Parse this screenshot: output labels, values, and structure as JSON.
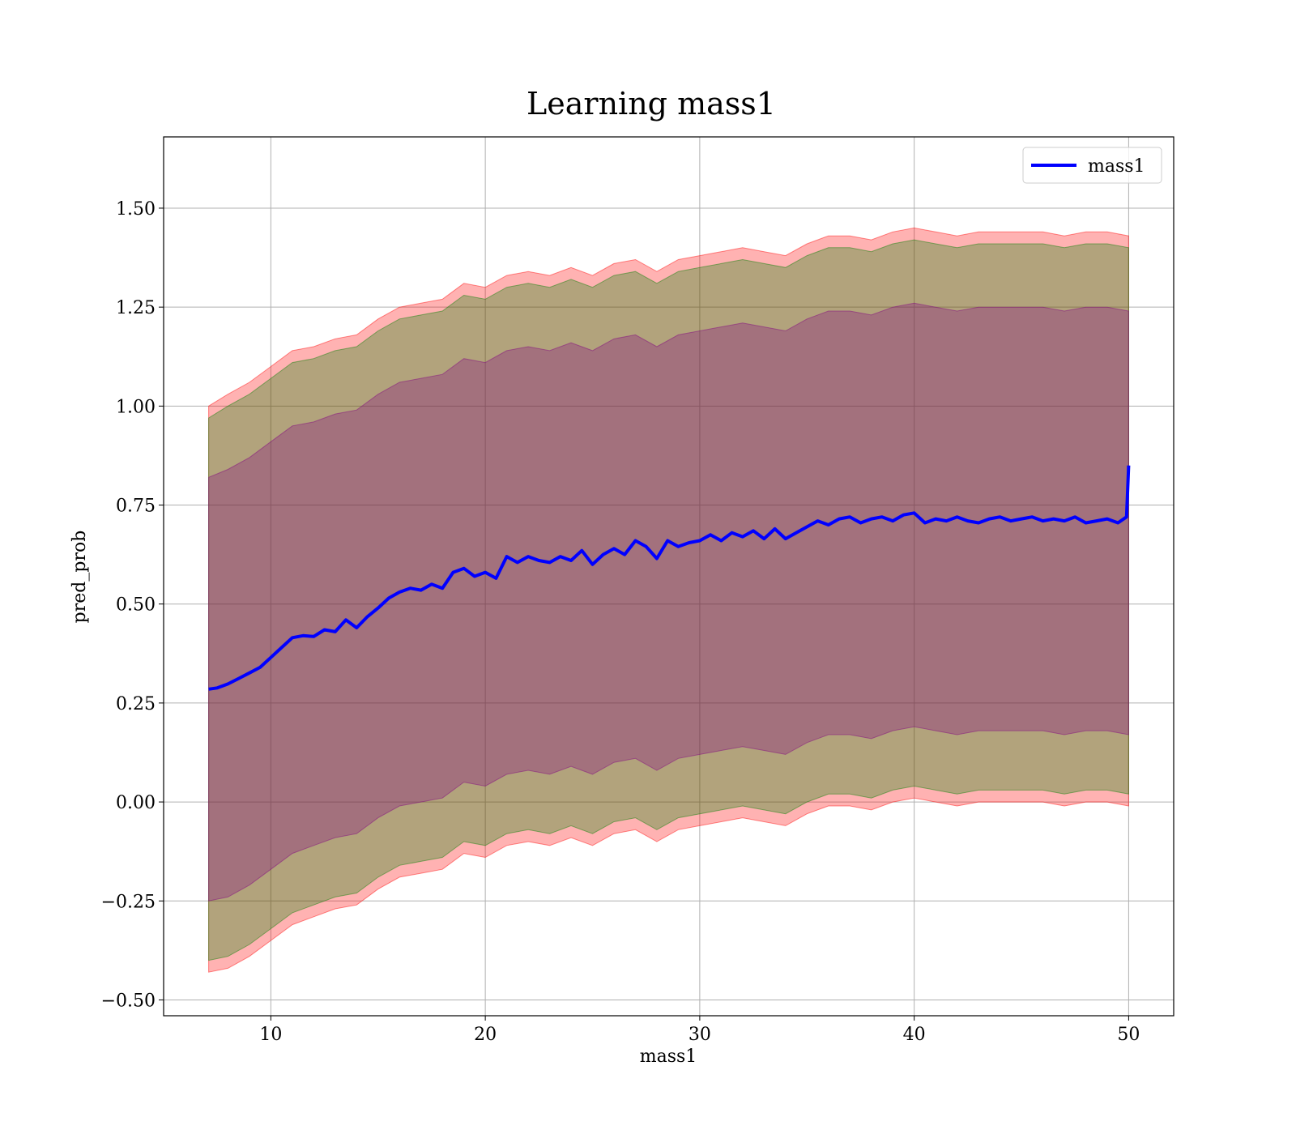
{
  "chart_data": {
    "type": "line",
    "title": "Learning mass1",
    "xlabel": "mass1",
    "ylabel": "pred_prob",
    "xlim": [
      5,
      52.1
    ],
    "ylim": [
      -0.54,
      1.68
    ],
    "xticks": [
      10,
      20,
      30,
      40,
      50
    ],
    "yticks": [
      -0.5,
      -0.25,
      0.0,
      0.25,
      0.5,
      0.75,
      1.0,
      1.25,
      1.5
    ],
    "ytick_labels": [
      "−0.50",
      "−0.25",
      "0.00",
      "0.25",
      "0.50",
      "0.75",
      "1.00",
      "1.25",
      "1.50"
    ],
    "grid": true,
    "legend_position": "top-right",
    "series": [
      {
        "name": "mass1",
        "color": "#0000ff",
        "x": [
          7.1,
          7.5,
          8,
          8.5,
          9,
          9.5,
          10,
          10.5,
          11,
          11.5,
          12,
          12.5,
          13,
          13.5,
          14,
          14.5,
          15,
          15.5,
          16,
          16.5,
          17,
          17.5,
          18,
          18.5,
          19,
          19.5,
          20,
          20.5,
          21,
          21.5,
          22,
          22.5,
          23,
          23.5,
          24,
          24.5,
          25,
          25.5,
          26,
          26.5,
          27,
          27.5,
          28,
          28.5,
          29,
          29.5,
          30,
          30.5,
          31,
          31.5,
          32,
          32.5,
          33,
          33.5,
          34,
          34.5,
          35,
          35.5,
          36,
          36.5,
          37,
          37.5,
          38,
          38.5,
          39,
          39.5,
          40,
          40.5,
          41,
          41.5,
          42,
          42.5,
          43,
          43.5,
          44,
          44.5,
          45,
          45.5,
          46,
          46.5,
          47,
          47.5,
          48,
          48.5,
          49,
          49.5,
          49.9,
          50
        ],
        "y": [
          0.285,
          0.288,
          0.298,
          0.312,
          0.326,
          0.34,
          0.365,
          0.39,
          0.415,
          0.42,
          0.418,
          0.435,
          0.43,
          0.46,
          0.44,
          0.468,
          0.49,
          0.515,
          0.53,
          0.54,
          0.535,
          0.55,
          0.54,
          0.58,
          0.59,
          0.57,
          0.58,
          0.565,
          0.62,
          0.605,
          0.62,
          0.61,
          0.605,
          0.62,
          0.61,
          0.635,
          0.6,
          0.625,
          0.64,
          0.625,
          0.66,
          0.645,
          0.615,
          0.66,
          0.645,
          0.655,
          0.66,
          0.675,
          0.66,
          0.68,
          0.67,
          0.685,
          0.665,
          0.69,
          0.665,
          0.68,
          0.695,
          0.71,
          0.7,
          0.715,
          0.72,
          0.705,
          0.715,
          0.72,
          0.71,
          0.725,
          0.73,
          0.705,
          0.715,
          0.71,
          0.72,
          0.71,
          0.705,
          0.715,
          0.72,
          0.71,
          0.715,
          0.72,
          0.71,
          0.715,
          0.71,
          0.72,
          0.705,
          0.71,
          0.715,
          0.705,
          0.72,
          0.85
        ]
      }
    ],
    "bands": [
      {
        "color": "#ff0000",
        "opacity": 0.3,
        "x": [
          7.1,
          8,
          9,
          10,
          11,
          12,
          13,
          14,
          15,
          16,
          17,
          18,
          19,
          20,
          21,
          22,
          23,
          24,
          25,
          26,
          27,
          28,
          29,
          30,
          31,
          32,
          33,
          34,
          35,
          36,
          37,
          38,
          39,
          40,
          41,
          42,
          43,
          44,
          45,
          46,
          47,
          48,
          49,
          50
        ],
        "upper": [
          1.0,
          1.03,
          1.06,
          1.1,
          1.14,
          1.15,
          1.17,
          1.18,
          1.22,
          1.25,
          1.26,
          1.27,
          1.31,
          1.3,
          1.33,
          1.34,
          1.33,
          1.35,
          1.33,
          1.36,
          1.37,
          1.34,
          1.37,
          1.38,
          1.39,
          1.4,
          1.39,
          1.38,
          1.41,
          1.43,
          1.43,
          1.42,
          1.44,
          1.45,
          1.44,
          1.43,
          1.44,
          1.44,
          1.44,
          1.44,
          1.43,
          1.44,
          1.44,
          1.43
        ],
        "lower": [
          -0.43,
          -0.42,
          -0.39,
          -0.35,
          -0.31,
          -0.29,
          -0.27,
          -0.26,
          -0.22,
          -0.19,
          -0.18,
          -0.17,
          -0.13,
          -0.14,
          -0.11,
          -0.1,
          -0.11,
          -0.09,
          -0.11,
          -0.08,
          -0.07,
          -0.1,
          -0.07,
          -0.06,
          -0.05,
          -0.04,
          -0.05,
          -0.06,
          -0.03,
          -0.01,
          -0.01,
          -0.02,
          0.0,
          0.01,
          0.0,
          -0.01,
          0.0,
          0.0,
          0.0,
          0.0,
          -0.01,
          0.0,
          0.0,
          -0.01
        ]
      },
      {
        "color": "#008000",
        "opacity": 0.3,
        "x": [
          7.1,
          8,
          9,
          10,
          11,
          12,
          13,
          14,
          15,
          16,
          17,
          18,
          19,
          20,
          21,
          22,
          23,
          24,
          25,
          26,
          27,
          28,
          29,
          30,
          31,
          32,
          33,
          34,
          35,
          36,
          37,
          38,
          39,
          40,
          41,
          42,
          43,
          44,
          45,
          46,
          47,
          48,
          49,
          50
        ],
        "upper": [
          0.97,
          1.0,
          1.03,
          1.07,
          1.11,
          1.12,
          1.14,
          1.15,
          1.19,
          1.22,
          1.23,
          1.24,
          1.28,
          1.27,
          1.3,
          1.31,
          1.3,
          1.32,
          1.3,
          1.33,
          1.34,
          1.31,
          1.34,
          1.35,
          1.36,
          1.37,
          1.36,
          1.35,
          1.38,
          1.4,
          1.4,
          1.39,
          1.41,
          1.42,
          1.41,
          1.4,
          1.41,
          1.41,
          1.41,
          1.41,
          1.4,
          1.41,
          1.41,
          1.4
        ],
        "lower": [
          -0.4,
          -0.39,
          -0.36,
          -0.32,
          -0.28,
          -0.26,
          -0.24,
          -0.23,
          -0.19,
          -0.16,
          -0.15,
          -0.14,
          -0.1,
          -0.11,
          -0.08,
          -0.07,
          -0.08,
          -0.06,
          -0.08,
          -0.05,
          -0.04,
          -0.07,
          -0.04,
          -0.03,
          -0.02,
          -0.01,
          -0.02,
          -0.03,
          0.0,
          0.02,
          0.02,
          0.01,
          0.03,
          0.04,
          0.03,
          0.02,
          0.03,
          0.03,
          0.03,
          0.03,
          0.02,
          0.03,
          0.03,
          0.02
        ]
      },
      {
        "color": "#800080",
        "opacity": 0.3,
        "x": [
          7.1,
          8,
          9,
          10,
          11,
          12,
          13,
          14,
          15,
          16,
          17,
          18,
          19,
          20,
          21,
          22,
          23,
          24,
          25,
          26,
          27,
          28,
          29,
          30,
          31,
          32,
          33,
          34,
          35,
          36,
          37,
          38,
          39,
          40,
          41,
          42,
          43,
          44,
          45,
          46,
          47,
          48,
          49,
          50
        ],
        "upper": [
          0.82,
          0.84,
          0.87,
          0.91,
          0.95,
          0.96,
          0.98,
          0.99,
          1.03,
          1.06,
          1.07,
          1.08,
          1.12,
          1.11,
          1.14,
          1.15,
          1.14,
          1.16,
          1.14,
          1.17,
          1.18,
          1.15,
          1.18,
          1.19,
          1.2,
          1.21,
          1.2,
          1.19,
          1.22,
          1.24,
          1.24,
          1.23,
          1.25,
          1.26,
          1.25,
          1.24,
          1.25,
          1.25,
          1.25,
          1.25,
          1.24,
          1.25,
          1.25,
          1.24
        ],
        "lower": [
          -0.25,
          -0.24,
          -0.21,
          -0.17,
          -0.13,
          -0.11,
          -0.09,
          -0.08,
          -0.04,
          -0.01,
          0.0,
          0.01,
          0.05,
          0.04,
          0.07,
          0.08,
          0.07,
          0.09,
          0.07,
          0.1,
          0.11,
          0.08,
          0.11,
          0.12,
          0.13,
          0.14,
          0.13,
          0.12,
          0.15,
          0.17,
          0.17,
          0.16,
          0.18,
          0.19,
          0.18,
          0.17,
          0.18,
          0.18,
          0.18,
          0.18,
          0.17,
          0.18,
          0.18,
          0.17
        ]
      }
    ]
  }
}
